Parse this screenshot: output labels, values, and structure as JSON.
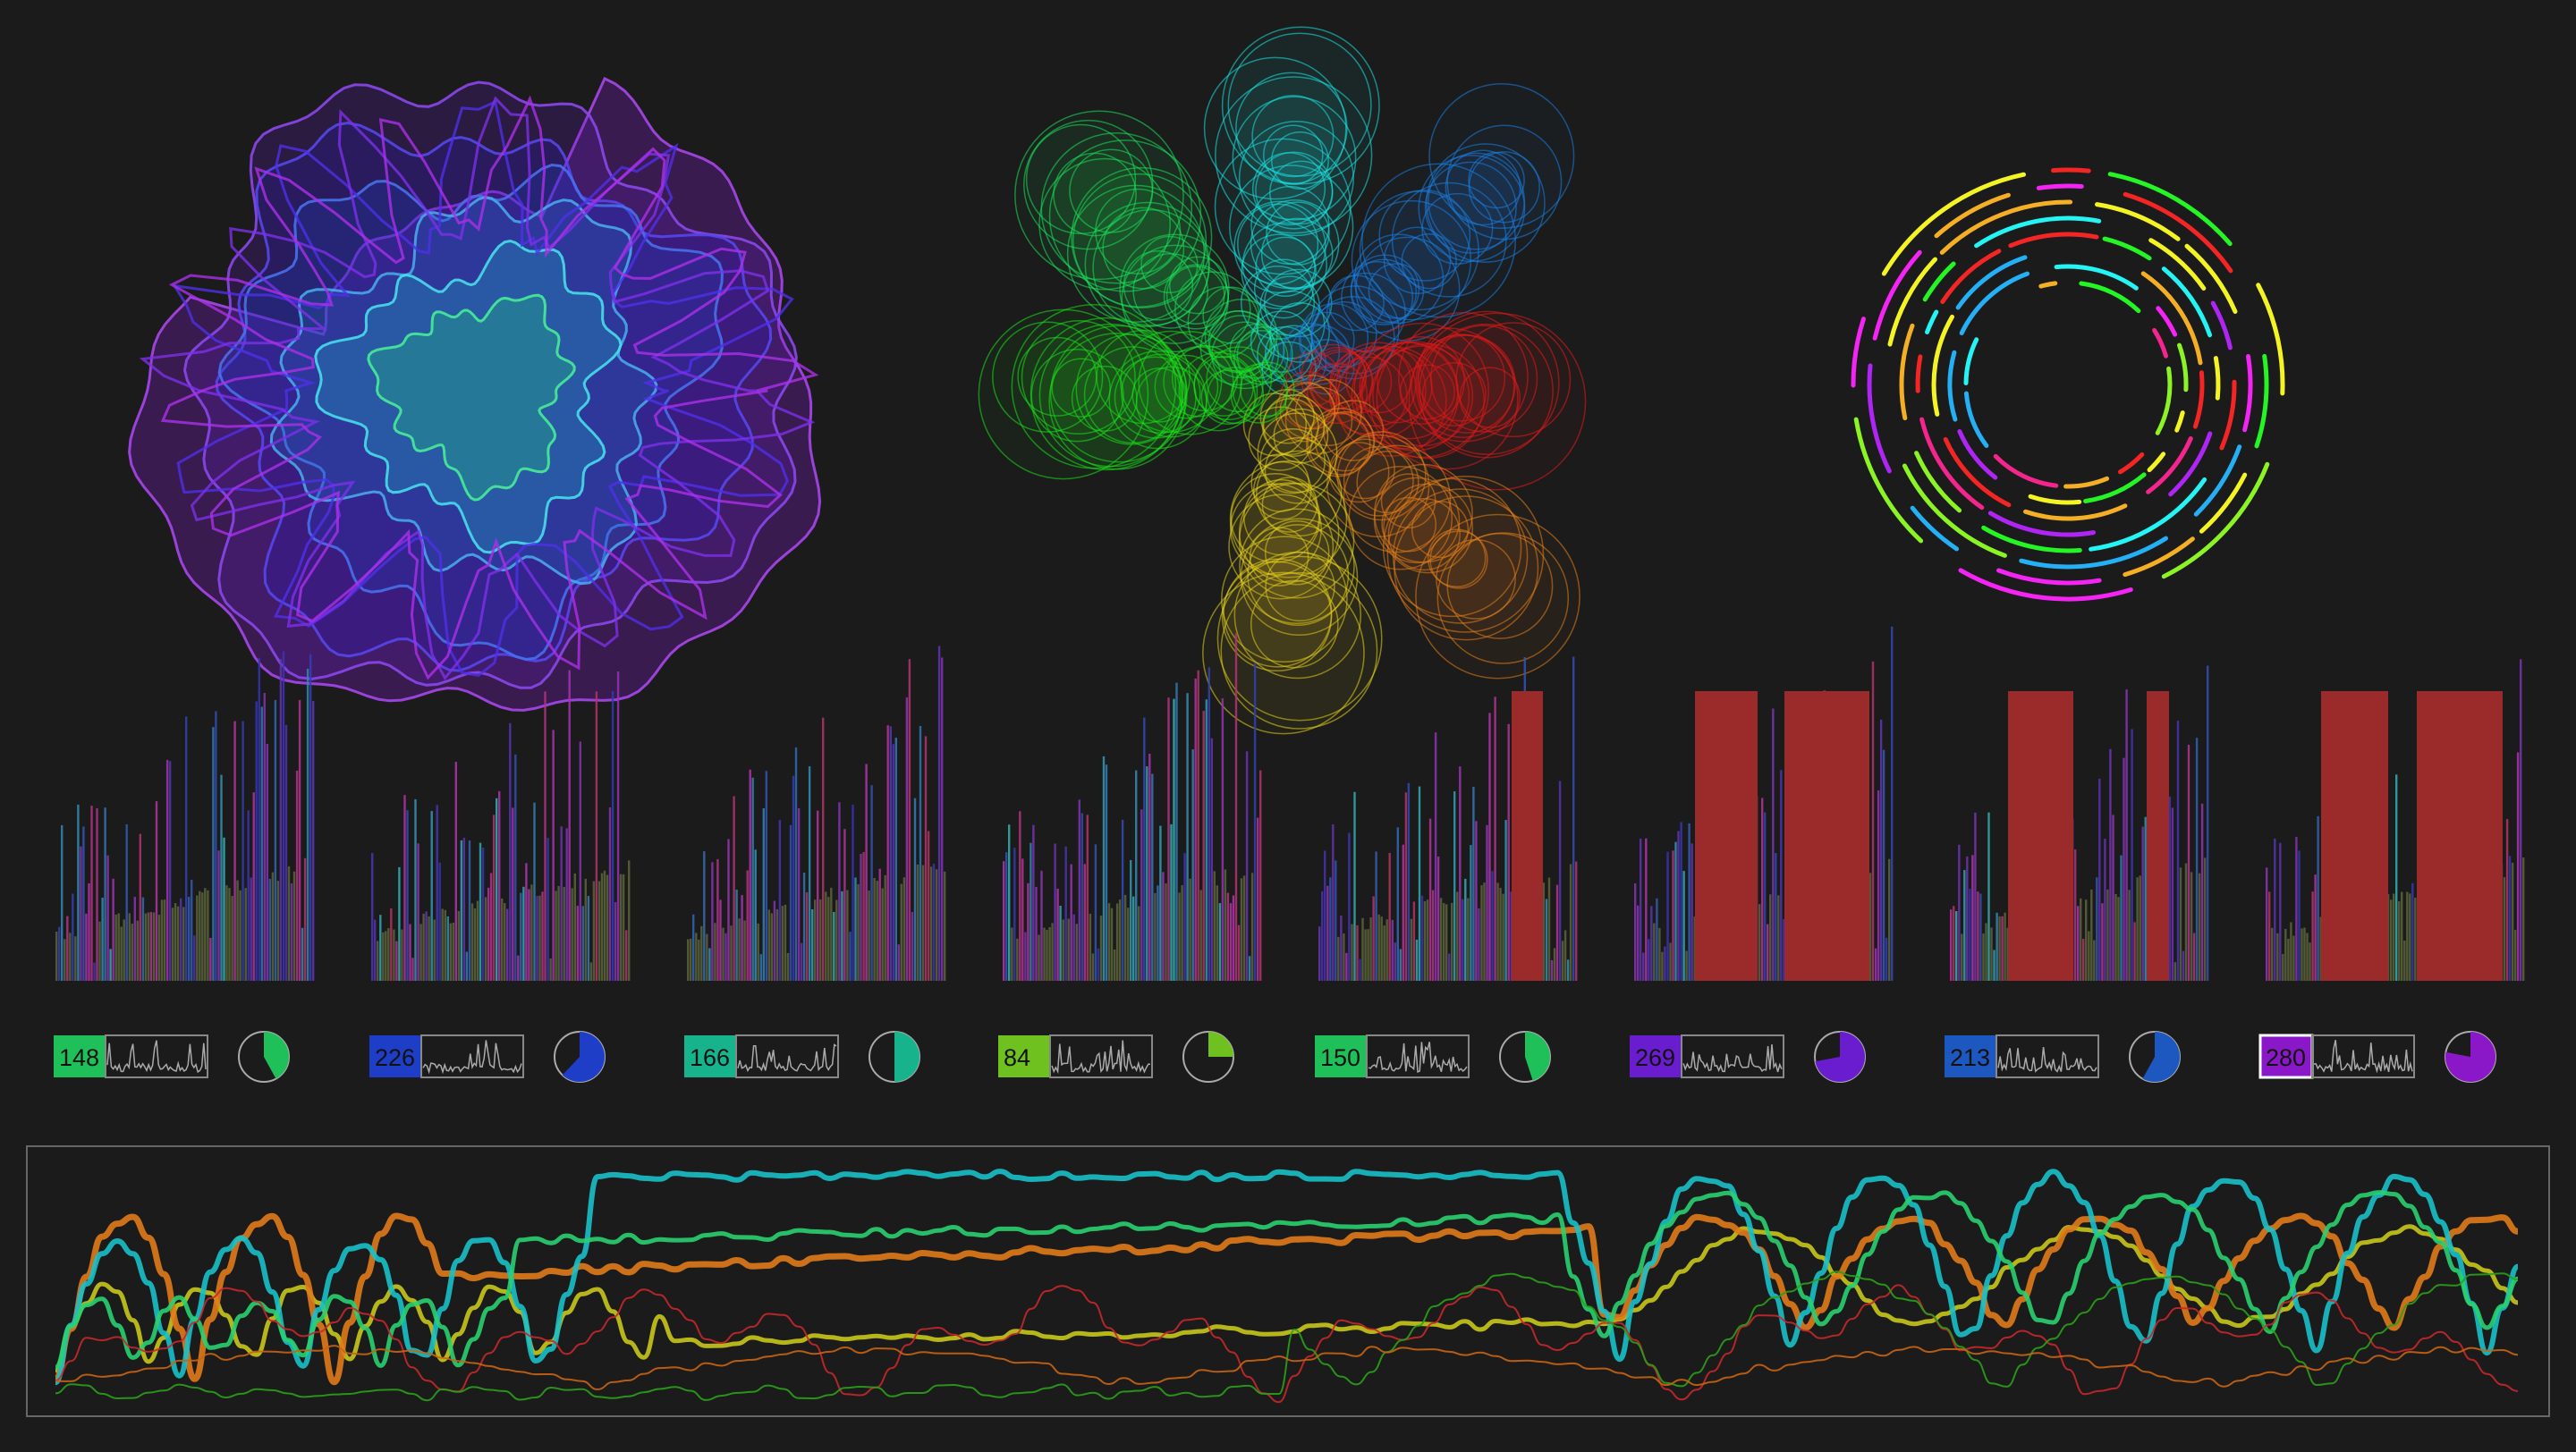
{
  "panel_values": [
    "148",
    "226",
    "166",
    "84",
    "150",
    "269",
    "213",
    "280"
  ],
  "colors": {
    "background": "#1b1b1b",
    "bar_red": "#9b2a2a",
    "panel_fills": [
      "#1fc05a",
      "#1e3ec8",
      "#17b38c",
      "#6ec11e",
      "#1fc05a",
      "#6a1ccf",
      "#1d58c0",
      "#8a18c8"
    ],
    "line_series": [
      "#c8c81c",
      "#e07a1a",
      "#19c0c8",
      "#2ad070",
      "#c8282a",
      "#2aa01a",
      "#c86414"
    ]
  },
  "chart_data": [
    {
      "type": "area",
      "description": "radial overlapping area chart (polar)"
    },
    {
      "type": "scatter",
      "description": "six spokes of ring-shaped markers"
    },
    {
      "type": "pie",
      "description": "concentric dashed ring chart"
    },
    {
      "type": "bar",
      "description": "eight histogram panels",
      "panels": 8
    },
    {
      "type": "line",
      "description": "smoothed multi-series line chart",
      "series_count": 7
    }
  ]
}
